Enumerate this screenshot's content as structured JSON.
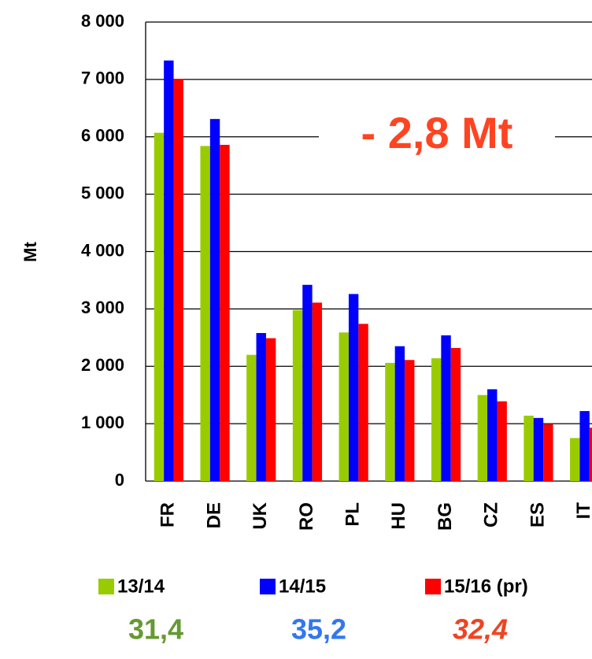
{
  "chart_data": {
    "type": "bar",
    "y_label": "Mt",
    "annotation": "- 2,8 Mt",
    "categories": [
      "FR",
      "DE",
      "UK",
      "RO",
      "PL",
      "HU",
      "BG",
      "CZ",
      "ES",
      "IT"
    ],
    "series": [
      {
        "name": "13/14",
        "color": "#99cc00",
        "values": [
          6070,
          5840,
          2200,
          2980,
          2590,
          2060,
          2140,
          1500,
          1140,
          750
        ]
      },
      {
        "name": "14/15",
        "color": "#0000ff",
        "values": [
          7330,
          6310,
          2580,
          3420,
          3260,
          2350,
          2540,
          1600,
          1100,
          1220
        ]
      },
      {
        "name": "15/16 (pr)",
        "color": "#ff0000",
        "values": [
          7010,
          5860,
          2490,
          3110,
          2740,
          2110,
          2320,
          1390,
          990,
          930
        ]
      }
    ],
    "totals": [
      "31,4",
      "35,2",
      "32,4"
    ],
    "ylim": [
      0,
      8000
    ],
    "yticks": [
      0,
      {
        "value": 1000,
        "label": "1 000"
      },
      {
        "value": 2000,
        "label": "2 000"
      },
      {
        "value": 3000,
        "label": "3 000"
      },
      {
        "value": 4000,
        "label": "4 000"
      },
      {
        "value": 5000,
        "label": "5 000"
      },
      {
        "value": 6000,
        "label": "6 000"
      },
      {
        "value": 7000,
        "label": "7 000"
      },
      {
        "value": 8000,
        "label": "8 000"
      }
    ],
    "grid": true
  }
}
